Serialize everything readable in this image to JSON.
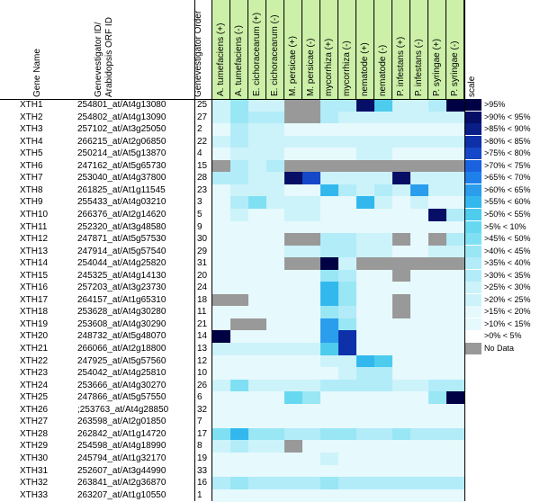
{
  "headers": {
    "gene_name": "Gene Name",
    "ids": "Genevestigator ID/ Arabidopsis ORF ID",
    "order": "Genevestigator Order",
    "conditions": [
      "A. tumefaciens (+)",
      "A. tumefaciens (-)",
      "E. cichoracearum (+)",
      "E. cichoracearum (-)",
      "M. persicae (+)",
      "M. persicae (-)",
      "mycorrhiza (+)",
      "mycorrhiza (-)",
      "nematode (+)",
      "nematode (-)",
      "P. infestans (+)",
      "P. infestans (-)",
      "P. syringae (+)",
      "P. syringae (-)"
    ],
    "scale": "scale"
  },
  "colors": {
    "header_green": "#ccf0a8",
    "levels": [
      "#ffffff",
      "#e6f9fd",
      "#ccf3fa",
      "#b2ecf8",
      "#99e6f5",
      "#80e0f3",
      "#66d9f0",
      "#4dccee",
      "#33b8ee",
      "#2a9ded",
      "#2080ea",
      "#1a62e0",
      "#1448c8",
      "#0e30a8",
      "#0a1e88",
      "#060e66",
      "#000044"
    ],
    "nodata": "#999999"
  },
  "scale": [
    {
      "label": ">95%",
      "level": 16
    },
    {
      "label": ">90% < 95%",
      "level": 15
    },
    {
      "label": ">85% < 90%",
      "level": 14
    },
    {
      "label": ">80% < 85%",
      "level": 13
    },
    {
      "label": ">75% < 80%",
      "level": 12
    },
    {
      "label": ">70% < 75%",
      "level": 11
    },
    {
      "label": ">65% < 70%",
      "level": 10
    },
    {
      "label": ">60% < 65%",
      "level": 9
    },
    {
      "label": ">55% < 60%",
      "level": 8
    },
    {
      "label": ">50% < 55%",
      "level": 7
    },
    {
      "label": ">5% < 10%",
      "level": 6
    },
    {
      "label": ">45% < 50%",
      "level": 5
    },
    {
      "label": ">40% < 45%",
      "level": 4
    },
    {
      "label": ">35% < 40%",
      "level": 3
    },
    {
      "label": ">30% < 35%",
      "level": 3
    },
    {
      "label": ">25% < 30%",
      "level": 2
    },
    {
      "label": ">20% < 25%",
      "level": 2
    },
    {
      "label": ">15% < 20%",
      "level": 1
    },
    {
      "label": ">10% < 15%",
      "level": 1
    },
    {
      "label": ">0% < 5%",
      "level": 0
    },
    {
      "label": "No Data",
      "level": -1
    }
  ],
  "rows": [
    {
      "name": "XTH1",
      "id": "254801_at/At4g13080",
      "order": "25",
      "v": [
        2,
        4,
        2,
        2,
        -1,
        -1,
        3,
        3,
        15,
        7,
        2,
        2,
        3,
        16
      ]
    },
    {
      "name": "XTH2",
      "id": "254802_at/At4g13090",
      "order": "27",
      "v": [
        2,
        4,
        3,
        3,
        -1,
        -1,
        3,
        2,
        2,
        2,
        2,
        2,
        2,
        2
      ]
    },
    {
      "name": "XTH3",
      "id": "257102_at/At3g25050",
      "order": "2",
      "v": [
        1,
        3,
        2,
        2,
        1,
        1,
        1,
        1,
        1,
        1,
        1,
        1,
        1,
        1
      ]
    },
    {
      "name": "XTH4",
      "id": "266215_at/At2g06850",
      "order": "22",
      "v": [
        2,
        3,
        2,
        2,
        2,
        2,
        2,
        2,
        2,
        2,
        2,
        2,
        2,
        2
      ]
    },
    {
      "name": "XTH5",
      "id": "250214_at/At5g13870",
      "order": "4",
      "v": [
        1,
        2,
        2,
        2,
        1,
        1,
        1,
        1,
        2,
        2,
        1,
        1,
        1,
        1
      ]
    },
    {
      "name": "XTH6",
      "id": "247162_at/At5g65730",
      "order": "15",
      "v": [
        -1,
        3,
        2,
        3,
        -1,
        -1,
        -1,
        -1,
        -1,
        -1,
        -1,
        -1,
        -1,
        -1
      ]
    },
    {
      "name": "XTH7",
      "id": "253040_at/At4g37800",
      "order": "28",
      "v": [
        3,
        3,
        2,
        2,
        15,
        12,
        2,
        2,
        2,
        2,
        15,
        2,
        2,
        2
      ]
    },
    {
      "name": "XTH8",
      "id": "261825_at/At1g11545",
      "order": "23",
      "v": [
        1,
        2,
        2,
        2,
        1,
        1,
        8,
        3,
        2,
        3,
        2,
        9,
        2,
        2
      ]
    },
    {
      "name": "XTH9",
      "id": "255433_at/At4g03210",
      "order": "3",
      "v": [
        1,
        3,
        5,
        2,
        2,
        2,
        1,
        1,
        8,
        2,
        1,
        2,
        1,
        1
      ]
    },
    {
      "name": "XTH10",
      "id": "266376_at/At2g14620",
      "order": "5",
      "v": [
        1,
        2,
        1,
        1,
        2,
        2,
        1,
        1,
        1,
        1,
        1,
        1,
        15,
        3
      ]
    },
    {
      "name": "XTH11",
      "id": "252320_at/At3g48580",
      "order": "9",
      "v": [
        1,
        1,
        1,
        1,
        1,
        1,
        1,
        1,
        1,
        1,
        1,
        1,
        1,
        1
      ]
    },
    {
      "name": "XTH12",
      "id": "247871_at/At5g57530",
      "order": "30",
      "v": [
        1,
        1,
        1,
        1,
        -1,
        -1,
        3,
        3,
        2,
        2,
        -1,
        1,
        -1,
        3
      ]
    },
    {
      "name": "XTH13",
      "id": "247914_at/At5g57540",
      "order": "29",
      "v": [
        1,
        1,
        1,
        1,
        2,
        2,
        3,
        3,
        2,
        2,
        1,
        1,
        2,
        2
      ]
    },
    {
      "name": "XTH14",
      "id": "254044_at/At4g25820",
      "order": "31",
      "v": [
        1,
        1,
        1,
        1,
        -1,
        -1,
        16,
        2,
        -1,
        -1,
        -1,
        -1,
        -1,
        -1
      ]
    },
    {
      "name": "XTH15",
      "id": "245325_at/At4g14130",
      "order": "20",
      "v": [
        1,
        1,
        1,
        1,
        1,
        1,
        4,
        3,
        1,
        1,
        -1,
        1,
        1,
        1
      ]
    },
    {
      "name": "XTH16",
      "id": "257203_at/At3g23730",
      "order": "24",
      "v": [
        1,
        1,
        1,
        1,
        1,
        1,
        8,
        4,
        1,
        1,
        1,
        1,
        1,
        1
      ]
    },
    {
      "name": "XTH17",
      "id": "264157_at/At1g65310",
      "order": "18",
      "v": [
        -1,
        -1,
        1,
        1,
        1,
        1,
        8,
        4,
        1,
        1,
        -1,
        1,
        1,
        1
      ]
    },
    {
      "name": "XTH18",
      "id": "253628_at/At4g30280",
      "order": "11",
      "v": [
        1,
        1,
        1,
        1,
        1,
        1,
        4,
        3,
        1,
        1,
        -1,
        1,
        1,
        1
      ]
    },
    {
      "name": "XTH19",
      "id": "253608_at/At4g30290",
      "order": "21",
      "v": [
        1,
        -1,
        -1,
        1,
        1,
        1,
        9,
        4,
        1,
        1,
        1,
        1,
        1,
        1
      ]
    },
    {
      "name": "XTH20",
      "id": "248732_at/At5g48070",
      "order": "14",
      "v": [
        16,
        1,
        1,
        1,
        1,
        1,
        9,
        13,
        1,
        1,
        1,
        1,
        1,
        1
      ]
    },
    {
      "name": "XTH21",
      "id": "266066_at/At2g18800",
      "order": "13",
      "v": [
        2,
        2,
        2,
        2,
        2,
        2,
        7,
        13,
        1,
        1,
        1,
        1,
        1,
        1
      ]
    },
    {
      "name": "XTH22",
      "id": "247925_at/At5g57560",
      "order": "12",
      "v": [
        1,
        1,
        1,
        1,
        1,
        1,
        2,
        2,
        8,
        7,
        1,
        1,
        1,
        1
      ]
    },
    {
      "name": "XTH23",
      "id": "254042_at/At4g25810",
      "order": "10",
      "v": [
        1,
        1,
        1,
        1,
        1,
        1,
        1,
        2,
        3,
        3,
        1,
        1,
        1,
        1
      ]
    },
    {
      "name": "XTH24",
      "id": "253666_at/At4g30270",
      "order": "26",
      "v": [
        2,
        5,
        2,
        2,
        2,
        2,
        3,
        3,
        3,
        3,
        2,
        2,
        3,
        3
      ]
    },
    {
      "name": "XTH25",
      "id": "247866_at/At5g57550",
      "order": "6",
      "v": [
        1,
        1,
        1,
        1,
        6,
        4,
        1,
        1,
        1,
        1,
        1,
        1,
        4,
        16
      ]
    },
    {
      "name": "XTH26",
      "id": ";253763_at/At4g28850",
      "order": "32",
      "v": [
        1,
        1,
        1,
        1,
        1,
        1,
        1,
        1,
        1,
        1,
        1,
        1,
        1,
        1
      ]
    },
    {
      "name": "XTH27",
      "id": "263598_at/At2g01850",
      "order": "7",
      "v": [
        1,
        1,
        1,
        1,
        1,
        1,
        1,
        1,
        1,
        1,
        1,
        1,
        1,
        1
      ]
    },
    {
      "name": "XTH28",
      "id": "262842_at/At1g14720",
      "order": "17",
      "v": [
        5,
        8,
        4,
        4,
        3,
        3,
        4,
        4,
        3,
        3,
        4,
        3,
        3,
        3
      ]
    },
    {
      "name": "XTH29",
      "id": "254598_at/At4g18990",
      "order": "8",
      "v": [
        2,
        3,
        2,
        2,
        -1,
        1,
        1,
        1,
        1,
        1,
        1,
        1,
        1,
        1
      ]
    },
    {
      "name": "XTH30",
      "id": "245794_at/At1g32170",
      "order": "19",
      "v": [
        1,
        1,
        1,
        1,
        1,
        1,
        2,
        1,
        1,
        1,
        1,
        1,
        1,
        1
      ]
    },
    {
      "name": "XTH31",
      "id": "252607_at/At3g44990",
      "order": "33",
      "v": [
        1,
        1,
        1,
        1,
        1,
        1,
        1,
        1,
        1,
        1,
        1,
        1,
        1,
        1
      ]
    },
    {
      "name": "XTH32",
      "id": "263841_at/At2g36870",
      "order": "16",
      "v": [
        3,
        4,
        3,
        3,
        3,
        3,
        4,
        3,
        3,
        3,
        3,
        3,
        3,
        3
      ]
    },
    {
      "name": "XTH33",
      "id": "263207_at/At1g10550",
      "order": "1",
      "v": [
        1,
        1,
        1,
        1,
        1,
        1,
        1,
        1,
        1,
        1,
        1,
        1,
        1,
        1
      ]
    }
  ]
}
